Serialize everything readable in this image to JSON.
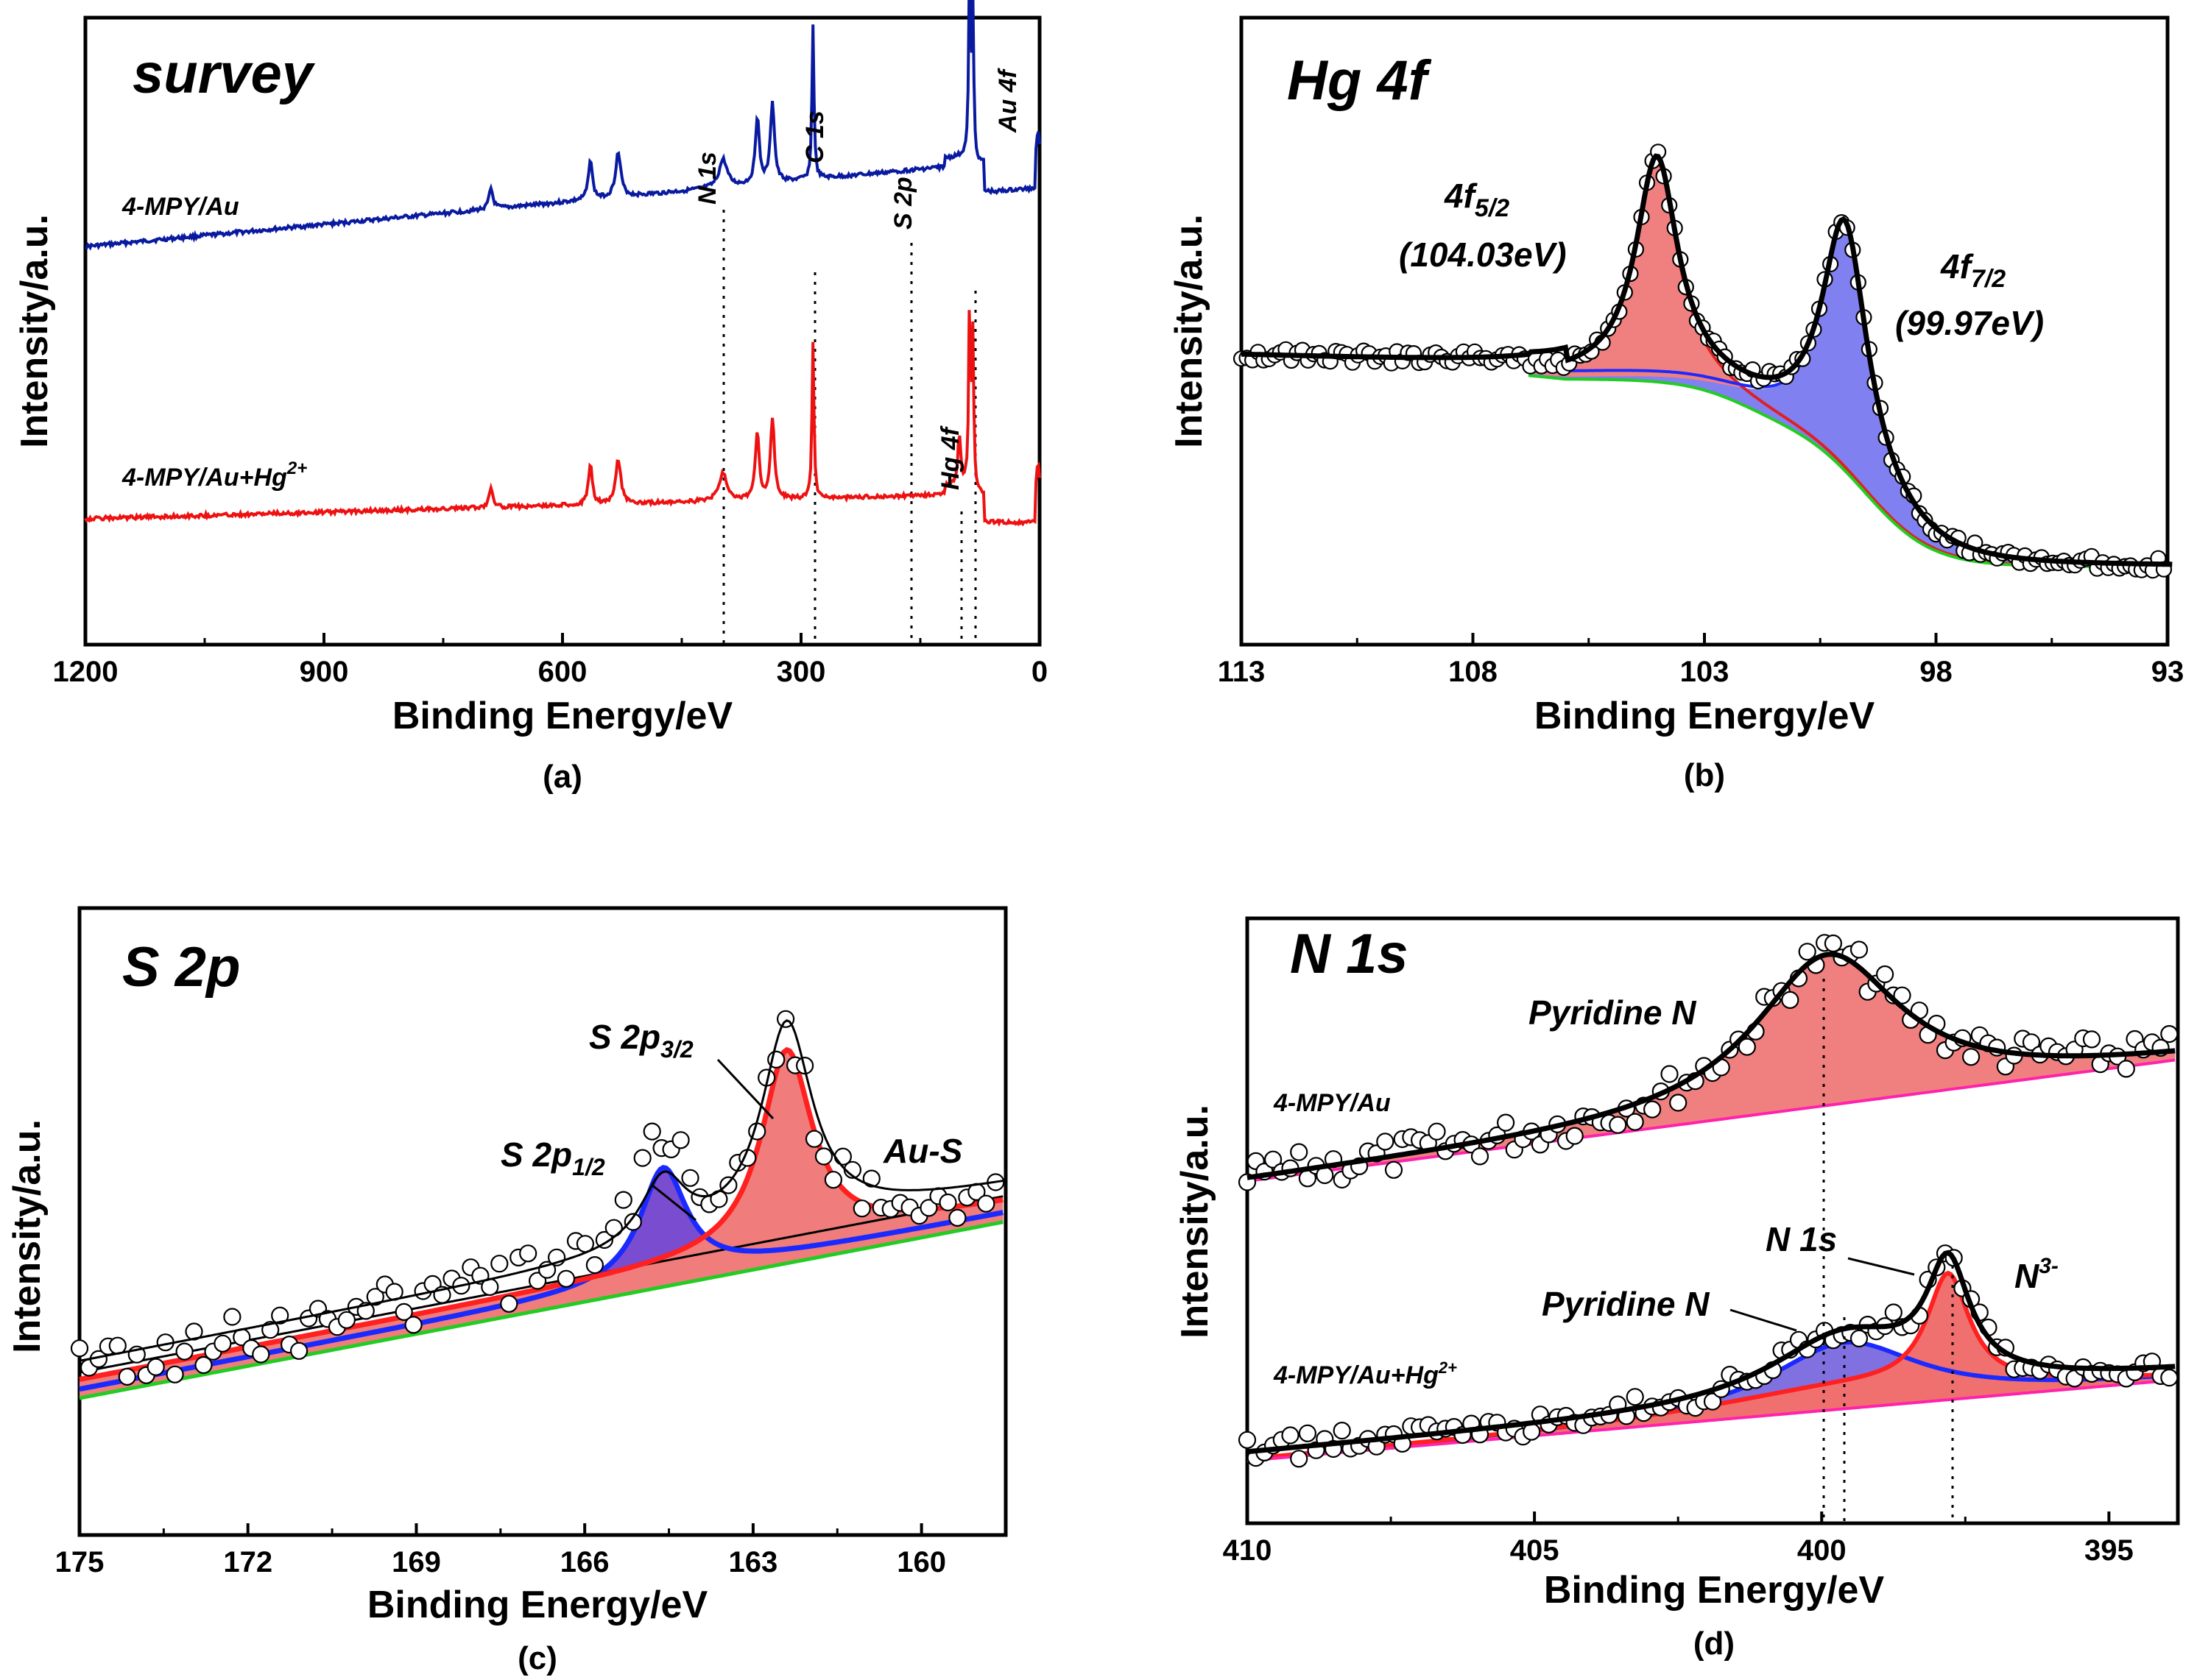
{
  "figure": {
    "panels": [
      {
        "id": "a",
        "title": "survey",
        "xlabel": "Binding Energy/eV",
        "ylabel": "Intensity/a.u.",
        "caption": "(a)",
        "ticks": [
          "1200",
          "900",
          "600",
          "300",
          "0"
        ],
        "series_labels": [
          "4-MPY/Au",
          "4-MPY/Au+Hg",
          "2+"
        ],
        "peak_labels": [
          "N 1s",
          "C 1s",
          "S 2p",
          "Au 4f",
          "Hg 4f"
        ]
      },
      {
        "id": "b",
        "title": "Hg  4f",
        "xlabel": "Binding Energy/eV",
        "ylabel": "Intensity/a.u.",
        "caption": "(b)",
        "ticks": [
          "113",
          "108",
          "103",
          "98",
          "93"
        ],
        "peak1": {
          "main": "4f",
          "sub": "5/2",
          "energy": "(104.03eV)"
        },
        "peak2": {
          "main": "4f",
          "sub": "7/2",
          "energy": "(99.97eV)"
        }
      },
      {
        "id": "c",
        "title": "S 2p",
        "xlabel": "Binding Energy/eV",
        "ylabel": "Intensity/a.u.",
        "caption": "(c)",
        "ticks": [
          "175",
          "172",
          "169",
          "166",
          "163",
          "160"
        ],
        "labels": {
          "s32_main": "S 2p",
          "s32_sub": "3/2",
          "s12_main": "S 2p",
          "s12_sub": "1/2",
          "aus": "Au-S"
        }
      },
      {
        "id": "d",
        "title": "N 1s",
        "xlabel": "Binding Energy/eV",
        "ylabel": "Intensity/a.u.",
        "caption": "(d)",
        "ticks": [
          "410",
          "405",
          "400",
          "395"
        ],
        "labels": {
          "pyr_top": "Pyridine N",
          "pyr_bot": "Pyridine N",
          "n1s": "N 1s",
          "n3": "N",
          "n3_sup": "3-",
          "series_top": "4-MPY/Au",
          "series_bot": "4-MPY/Au+Hg",
          "series_bot_sup": "2+"
        }
      }
    ]
  },
  "chart_data": [
    {
      "type": "line",
      "panel": "a",
      "title": "survey",
      "xlabel": "Binding Energy/eV",
      "ylabel": "Intensity/a.u.",
      "xlim": [
        1200,
        0
      ],
      "series": [
        {
          "name": "4-MPY/Au",
          "color": "#0a1aa0",
          "peaks_eV": [
            399,
            285,
            163,
            84
          ]
        },
        {
          "name": "4-MPY/Au+Hg2+",
          "color": "#ee1111",
          "peaks_eV": [
            399,
            285,
            163,
            101,
            84
          ]
        }
      ]
    },
    {
      "type": "line",
      "panel": "b",
      "title": "Hg 4f",
      "xlim": [
        113,
        93
      ],
      "peaks": [
        {
          "label": "4f5/2",
          "center_eV": 104.03
        },
        {
          "label": "4f7/2",
          "center_eV": 99.97
        }
      ],
      "colors": {
        "peak1": "#f08080",
        "peak2": "#8080f0",
        "envelope": "#000000",
        "background": "#22cc22"
      }
    },
    {
      "type": "line",
      "panel": "c",
      "title": "S 2p",
      "xlim": [
        175,
        158.5
      ],
      "peaks": [
        {
          "label": "S 2p3/2 (Au-S)",
          "center_eV": 162.4
        },
        {
          "label": "S 2p1/2",
          "center_eV": 164.6
        }
      ],
      "colors": {
        "au_s": "#ff2020",
        "s12": "#1a2aff",
        "background": "#22cc22"
      }
    },
    {
      "type": "line",
      "panel": "d",
      "title": "N 1s",
      "xlim": [
        410,
        393.8
      ],
      "series": [
        {
          "name": "4-MPY/Au",
          "peaks": [
            {
              "label": "Pyridine N",
              "center_eV": 399.9
            }
          ]
        },
        {
          "name": "4-MPY/Au+Hg2+",
          "peaks": [
            {
              "label": "Pyridine N",
              "center_eV": 399.6
            },
            {
              "label": "N3-",
              "center_eV": 397.8
            }
          ]
        }
      ],
      "colors": {
        "pyridine": "#f08080",
        "n3": "#ff2020",
        "baseline": "#ff22aa"
      }
    }
  ]
}
